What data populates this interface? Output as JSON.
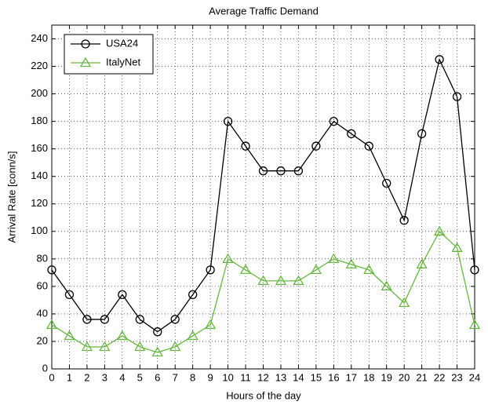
{
  "chart_data": {
    "type": "line",
    "title": "Average Traffic Demand",
    "xlabel": "Hours of the day",
    "ylabel": "Arrival Rate [conn/s]",
    "x": [
      0,
      1,
      2,
      3,
      4,
      5,
      6,
      7,
      8,
      9,
      10,
      11,
      12,
      13,
      14,
      15,
      16,
      17,
      18,
      19,
      20,
      21,
      22,
      23,
      24
    ],
    "series": [
      {
        "name": "USA24",
        "color": "#000000",
        "marker": "o",
        "values": [
          72,
          54,
          36,
          36,
          54,
          36,
          27,
          36,
          54,
          72,
          180,
          162,
          144,
          144,
          144,
          162,
          180,
          171,
          162,
          135,
          108,
          171,
          225,
          198,
          72
        ]
      },
      {
        "name": "ItalyNet",
        "color": "#66b840",
        "marker": "^",
        "values": [
          32,
          24,
          16,
          16,
          24,
          16,
          12,
          16,
          24,
          32,
          80,
          72,
          64,
          64,
          64,
          72,
          80,
          76,
          72,
          60,
          48,
          76,
          100,
          88,
          32
        ]
      }
    ],
    "xlim": [
      0,
      24
    ],
    "xticks": [
      0,
      1,
      2,
      3,
      4,
      5,
      6,
      7,
      8,
      9,
      10,
      11,
      12,
      13,
      14,
      15,
      16,
      17,
      18,
      19,
      20,
      21,
      22,
      23,
      24
    ],
    "ylim": [
      0,
      250
    ],
    "yticks": [
      0,
      20,
      40,
      60,
      80,
      100,
      120,
      140,
      160,
      180,
      200,
      220,
      240
    ],
    "grid": true,
    "legend": "northwest"
  }
}
